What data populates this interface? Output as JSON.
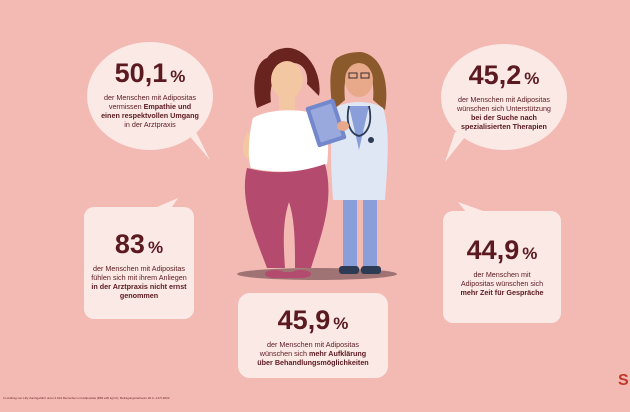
{
  "stats": [
    {
      "value": "50,1",
      "unit": "%",
      "line1": "der Menschen mit Adipositas",
      "line2a": "vermissen",
      "line2b": "Empathie und",
      "line3": "einen respektvollen Umgang",
      "line4": "in der Arztpraxis"
    },
    {
      "value": "45,2",
      "unit": "%",
      "line1": "der Menschen mit Adipositas",
      "line2": "wünschen sich Unterstützung",
      "line3": "bei der Suche nach",
      "line4": "spezialisierten Therapien"
    },
    {
      "value": "83",
      "unit": "%",
      "line1": "der Menschen mit Adipositas",
      "line2": "fühlen sich mit ihrem Anliegen",
      "line3": "in der Arztpraxis nicht ernst",
      "line4": "genommen"
    },
    {
      "value": "44,9",
      "unit": "%",
      "line1": "der Menschen mit",
      "line2": "Adipositas wünschen sich",
      "line3": "mehr Zeit für Gespräche"
    },
    {
      "value": "45,9",
      "unit": "%",
      "line1": "der Menschen mit Adipositas",
      "line2a": "wünschen sich",
      "line2b": "mehr Aufklärung",
      "line3": "über Behandlungsmöglichkeiten"
    }
  ],
  "footnote": "Im Auftrag von Lilly durchgeführt unter 2.044 Menschen mit Adipositas (BMI ≥30 kg/m²), Befragungszeitraum 20.4.–19.5.2023",
  "colors": {
    "background": "#f3b9b3",
    "bubble": "#fbe9e6",
    "text": "#5a1a20"
  }
}
